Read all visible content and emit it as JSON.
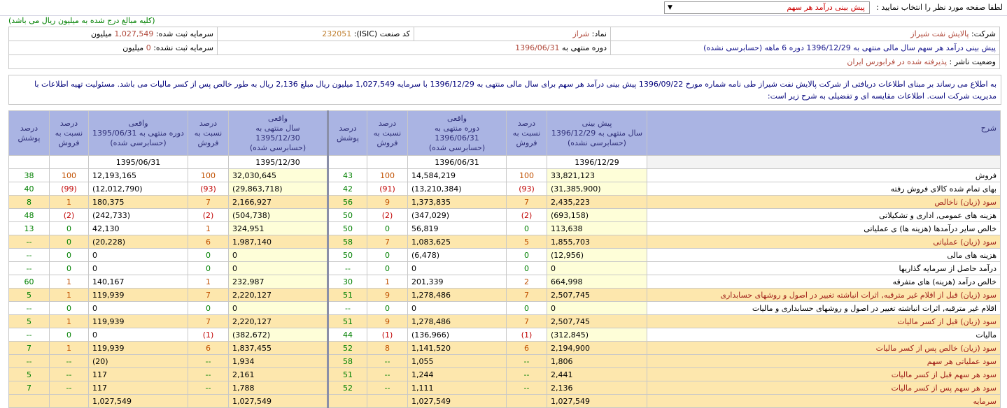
{
  "topbar": {
    "select_label": "لطفا صفحه مورد نظر را انتخاب نمایید :",
    "select_value": "پیش بینی درآمد هر سهم"
  },
  "note": "(کلیه مبالغ درج شده به میلیون ریال می باشد)",
  "info": {
    "company_label": "شرکت:",
    "company": "پالایش نفت شیراز",
    "symbol_label": "نماد:",
    "symbol": "شراز",
    "isic_label": "کد صنعت (ISIC):",
    "isic": "232051",
    "reg_cap_label": "سرمایه ثبت شده:",
    "reg_cap": "1,027,549",
    "reg_cap_unit": "میلیون",
    "title": "پیش بینی درآمد هر سهم سال مالی منتهی به 1396/12/29 دوره 6 ماهه (حسابرسی نشده)",
    "period_label": "دوره منتهی به",
    "period": "1396/06/31",
    "unreg_cap_label": "سرمایه ثبت نشده:",
    "unreg_cap": "0",
    "unreg_cap_unit": "میلیون",
    "status_label": "وضعیت ناشر :",
    "status": "پذیرفته شده در فرابورس ایران"
  },
  "announcement": "به اطلاع می رساند بر مبنای اطلاعات دریافتی از شرکت پالایش نفت شیراز طی نامه شماره مورخ 1396/09/22 پیش بینی درآمد هر سهم برای سال مالی منتهی به 1396/12/29 با سرمایه 1,027,549 میلیون ریال مبلغ 2,136 ریال به طور خالص پس از کسر مالیات می باشد. مسئولیت تهیه اطلاعات با مدیریت شرکت است. اطلاعات مقایسه ای و تفضیلی به شرح زیر است:",
  "table": {
    "headers": {
      "sharh": "شرح",
      "f1": "پیش بینی\nسال منتهی به 1396/12/29\n(حسابرسی نشده)",
      "p": "درصد\nنسبت به\nفروش",
      "a1": "واقعی\nدوره منتهی به 1396/06/31\n(حسابرسی شده)",
      "cov": "درصد\nپوشش",
      "a2": "واقعی\nسال منتهی به 1395/12/30\n(حسابرسی شده)",
      "a3": "واقعی\nدوره منتهی به 1395/06/31\n(حسابرسی شده)"
    },
    "dates": [
      "1396/12/29",
      "1396/06/31",
      "1395/12/30",
      "1395/06/31"
    ],
    "rows": [
      {
        "label": "فروش",
        "hl": false,
        "v": [
          "33,821,123",
          "100",
          "14,584,219",
          "100",
          "43",
          "32,030,645",
          "100",
          "12,193,165",
          "100",
          "38"
        ]
      },
      {
        "label": "بهای تمام شده کالای فروش رفته",
        "hl": false,
        "v": [
          "(31,385,900)",
          "(93)",
          "(13,210,384)",
          "(91)",
          "42",
          "(29,863,718)",
          "(93)",
          "(12,012,790)",
          "(99)",
          "40"
        ]
      },
      {
        "label": "سود (زیان) ناخالص",
        "hl": true,
        "v": [
          "2,435,223",
          "7",
          "1,373,835",
          "9",
          "56",
          "2,166,927",
          "7",
          "180,375",
          "1",
          "8"
        ]
      },
      {
        "label": "هزینه های عمومی, اداری و تشکیلاتی",
        "hl": false,
        "v": [
          "(693,158)",
          "(2)",
          "(347,029)",
          "(2)",
          "50",
          "(504,738)",
          "(2)",
          "(242,733)",
          "(2)",
          "48"
        ]
      },
      {
        "label": "خالص سایر درآمدها (هزینه ها) ی عملیاتی",
        "hl": false,
        "v": [
          "113,638",
          "0",
          "56,819",
          "0",
          "50",
          "324,951",
          "1",
          "42,130",
          "0",
          "13"
        ]
      },
      {
        "label": "سود (زیان) عملیاتی",
        "hl": true,
        "v": [
          "1,855,703",
          "5",
          "1,083,625",
          "7",
          "58",
          "1,987,140",
          "6",
          "(20,228)",
          "0",
          "--"
        ]
      },
      {
        "label": "هزینه های مالی",
        "hl": false,
        "v": [
          "(12,956)",
          "0",
          "(6,478)",
          "0",
          "50",
          "0",
          "0",
          "0",
          "0",
          "--"
        ]
      },
      {
        "label": "درآمد حاصل از سرمایه گذاریها",
        "hl": false,
        "v": [
          "0",
          "0",
          "0",
          "0",
          "--",
          "0",
          "0",
          "0",
          "0",
          "--"
        ]
      },
      {
        "label": "خالص درآمد (هزینه) های متفرقه",
        "hl": false,
        "v": [
          "664,998",
          "2",
          "201,339",
          "1",
          "30",
          "232,987",
          "1",
          "140,167",
          "1",
          "60"
        ]
      },
      {
        "label": "سود (زیان) قبل از اقلام غیر مترقبه, اثرات انباشته تغییر در اصول و روشهای حسابداری",
        "hl": true,
        "v": [
          "2,507,745",
          "7",
          "1,278,486",
          "9",
          "51",
          "2,220,127",
          "7",
          "119,939",
          "1",
          "5"
        ]
      },
      {
        "label": "اقلام غیر مترقبه, اثرات انباشته تغییر در اصول و روشهای حسابداری و مالیات",
        "hl": false,
        "v": [
          "0",
          "0",
          "0",
          "0",
          "--",
          "0",
          "0",
          "0",
          "0",
          "--"
        ]
      },
      {
        "label": "سود (زیان) قبل از کسر مالیات",
        "hl": true,
        "v": [
          "2,507,745",
          "7",
          "1,278,486",
          "9",
          "51",
          "2,220,127",
          "7",
          "119,939",
          "1",
          "5"
        ]
      },
      {
        "label": "مالیات",
        "hl": false,
        "v": [
          "(312,845)",
          "(1)",
          "(136,966)",
          "(1)",
          "44",
          "(382,672)",
          "(1)",
          "0",
          "0",
          "--"
        ]
      },
      {
        "label": "سود (زیان) خالص پس از کسر مالیات",
        "hl": true,
        "v": [
          "2,194,900",
          "6",
          "1,141,520",
          "8",
          "52",
          "1,837,455",
          "6",
          "119,939",
          "1",
          "7"
        ]
      },
      {
        "label": "سود عملیاتی هر سهم",
        "hl": true,
        "v": [
          "1,806",
          "--",
          "1,055",
          "--",
          "58",
          "1,934",
          "--",
          "(20)",
          "--",
          "--"
        ]
      },
      {
        "label": "سود هر سهم قبل از کسر مالیات",
        "hl": true,
        "v": [
          "2,441",
          "--",
          "1,244",
          "--",
          "51",
          "2,161",
          "--",
          "117",
          "--",
          "5"
        ]
      },
      {
        "label": "سود هر سهم پس از کسر مالیات",
        "hl": true,
        "v": [
          "2,136",
          "--",
          "1,111",
          "--",
          "52",
          "1,788",
          "--",
          "117",
          "--",
          "7"
        ]
      },
      {
        "label": "سرمایه",
        "hl": true,
        "v": [
          "1,027,549",
          "",
          "1,027,549",
          "",
          "",
          "1,027,549",
          "",
          "1,027,549",
          "",
          ""
        ]
      }
    ]
  },
  "colors": {
    "header_bg": "#aab4e3",
    "highlight_row": "#fde7ad",
    "forecast_col": "#fefed8",
    "percent_green": "#008000",
    "percent_red": "#c00000",
    "percent_orange": "#c05000"
  }
}
